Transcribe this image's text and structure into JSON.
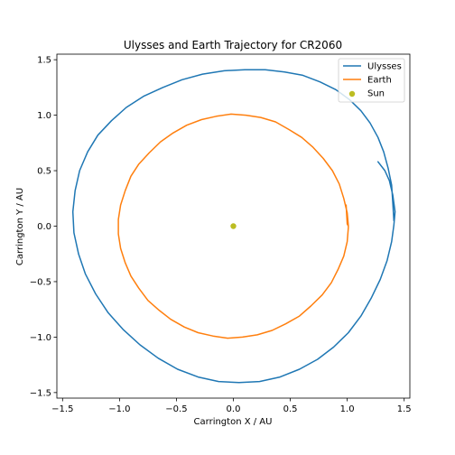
{
  "chart_data": {
    "type": "line",
    "title": "Ulysses and Earth Trajectory for CR2060",
    "xlabel": "Carrington X / AU",
    "ylabel": "Carrington Y / AU",
    "xlim": [
      -1.55,
      1.55
    ],
    "ylim": [
      -1.55,
      1.55
    ],
    "xticks": [
      -1.5,
      -1.0,
      -0.5,
      0.0,
      0.5,
      1.0,
      1.5
    ],
    "yticks": [
      -1.5,
      -1.0,
      -0.5,
      0.0,
      0.5,
      1.0,
      1.5
    ],
    "xtick_labels": [
      "−1.5",
      "−1.0",
      "−0.5",
      "0.0",
      "0.5",
      "1.0",
      "1.5"
    ],
    "ytick_labels": [
      "−1.5",
      "−1.0",
      "−0.5",
      "0.0",
      "0.5",
      "1.0",
      "1.5"
    ],
    "grid": false,
    "legend_position": "top-right",
    "series": [
      {
        "name": "Ulysses",
        "color": "#1f77b4",
        "kind": "line",
        "x": [
          1.41,
          1.4,
          1.39,
          1.36,
          1.32,
          1.27,
          1.2,
          1.12,
          1.02,
          0.9,
          0.76,
          0.61,
          0.45,
          0.28,
          0.1,
          -0.08,
          -0.27,
          -0.45,
          -0.62,
          -0.79,
          -0.94,
          -1.07,
          -1.19,
          -1.28,
          -1.35,
          -1.39,
          -1.41,
          -1.4,
          -1.36,
          -1.3,
          -1.21,
          -1.1,
          -0.97,
          -0.82,
          -0.66,
          -0.49,
          -0.31,
          -0.13,
          0.05,
          0.23,
          0.41,
          0.58,
          0.74,
          0.88,
          1.01,
          1.12,
          1.21,
          1.29,
          1.35,
          1.39,
          1.41,
          1.42,
          1.4,
          1.37,
          1.33,
          1.27
        ],
        "y": [
          0.05,
          0.21,
          0.37,
          0.52,
          0.67,
          0.8,
          0.93,
          1.04,
          1.14,
          1.23,
          1.3,
          1.36,
          1.39,
          1.41,
          1.41,
          1.4,
          1.37,
          1.32,
          1.25,
          1.17,
          1.07,
          0.95,
          0.82,
          0.67,
          0.5,
          0.32,
          0.13,
          -0.06,
          -0.25,
          -0.43,
          -0.61,
          -0.78,
          -0.93,
          -1.07,
          -1.19,
          -1.29,
          -1.36,
          -1.4,
          -1.41,
          -1.4,
          -1.36,
          -1.29,
          -1.2,
          -1.09,
          -0.96,
          -0.81,
          -0.65,
          -0.48,
          -0.31,
          -0.14,
          0.01,
          0.13,
          0.28,
          0.41,
          0.5,
          0.58
        ]
      },
      {
        "name": "Earth",
        "color": "#ff7f0e",
        "kind": "line",
        "x": [
          1.0,
          1.01,
          1.0,
          0.97,
          0.92,
          0.86,
          0.78,
          0.68,
          0.58,
          0.46,
          0.34,
          0.21,
          0.08,
          -0.05,
          -0.18,
          -0.31,
          -0.43,
          -0.55,
          -0.65,
          -0.75,
          -0.83,
          -0.9,
          -0.95,
          -0.99,
          -1.01,
          -1.01,
          -0.99,
          -0.95,
          -0.9,
          -0.83,
          -0.74,
          -0.64,
          -0.53,
          -0.41,
          -0.28,
          -0.15,
          -0.02,
          0.11,
          0.24,
          0.37,
          0.49,
          0.6,
          0.7,
          0.79,
          0.87,
          0.93,
          0.97,
          1.0,
          1.01,
          1.0,
          0.99
        ],
        "y": [
          0.12,
          -0.01,
          -0.14,
          -0.27,
          -0.39,
          -0.51,
          -0.62,
          -0.72,
          -0.81,
          -0.88,
          -0.94,
          -0.98,
          -1.0,
          -1.01,
          -0.99,
          -0.96,
          -0.91,
          -0.84,
          -0.76,
          -0.67,
          -0.56,
          -0.45,
          -0.33,
          -0.2,
          -0.07,
          0.06,
          0.19,
          0.32,
          0.45,
          0.56,
          0.66,
          0.76,
          0.84,
          0.91,
          0.96,
          0.99,
          1.01,
          1.0,
          0.98,
          0.94,
          0.87,
          0.8,
          0.71,
          0.61,
          0.5,
          0.38,
          0.25,
          0.12,
          0.0,
          0.02,
          0.19
        ]
      },
      {
        "name": "Sun",
        "color": "#bcbd22",
        "kind": "scatter",
        "x": [
          0.0
        ],
        "y": [
          0.0
        ]
      }
    ]
  }
}
